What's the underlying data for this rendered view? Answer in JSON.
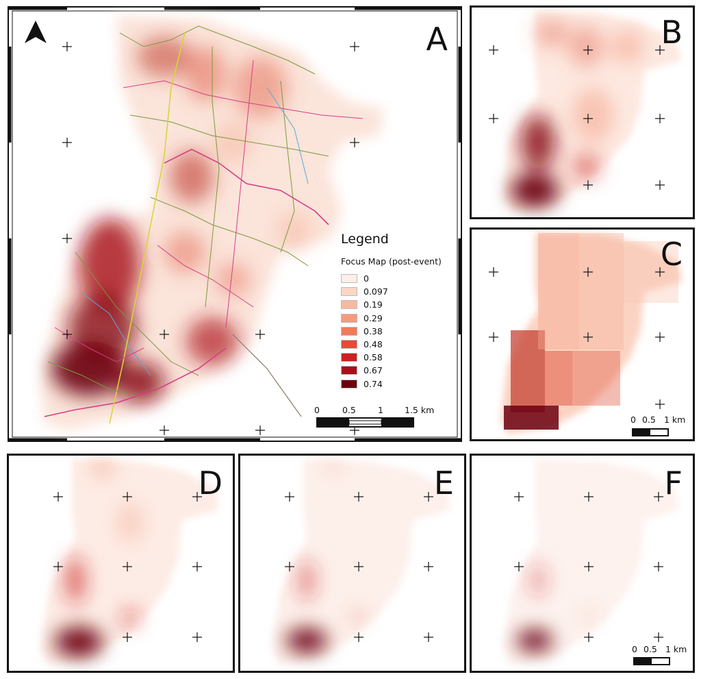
{
  "panels": [
    {
      "id": "A",
      "label": "A"
    },
    {
      "id": "B",
      "label": "B"
    },
    {
      "id": "C",
      "label": "C"
    },
    {
      "id": "D",
      "label": "D"
    },
    {
      "id": "E",
      "label": "E"
    },
    {
      "id": "F",
      "label": "F"
    }
  ],
  "legend": {
    "title": "Legend",
    "subtitle": "Focus Map (post-event)",
    "classes": [
      {
        "value": "0",
        "color": "#fdeee8"
      },
      {
        "value": "0.097",
        "color": "#fcd6c6"
      },
      {
        "value": "0.19",
        "color": "#f9b9a0"
      },
      {
        "value": "0.29",
        "color": "#f69a7e"
      },
      {
        "value": "0.38",
        "color": "#f07a5c"
      },
      {
        "value": "0.48",
        "color": "#e74a35"
      },
      {
        "value": "0.58",
        "color": "#cd2020"
      },
      {
        "value": "0.67",
        "color": "#a6111b"
      },
      {
        "value": "0.74",
        "color": "#6b0010"
      }
    ]
  },
  "scalebar_main": {
    "labels": [
      "0",
      "0.5",
      "1",
      "1.5 km"
    ]
  },
  "scalebar_c": {
    "labels": [
      "0",
      "0.5",
      "1 km"
    ]
  },
  "scalebar_f": {
    "labels": [
      "0",
      "0.5",
      "1 km"
    ]
  },
  "north_arrow": {
    "name": "north-arrow-icon"
  },
  "colors": {
    "frame": "#111111",
    "road_green": "#7a9a3a",
    "road_magenta": "#d63c86",
    "road_blue": "#5aa9d6",
    "road_yellow": "#d9d43a",
    "halo": "#fbe4da"
  }
}
